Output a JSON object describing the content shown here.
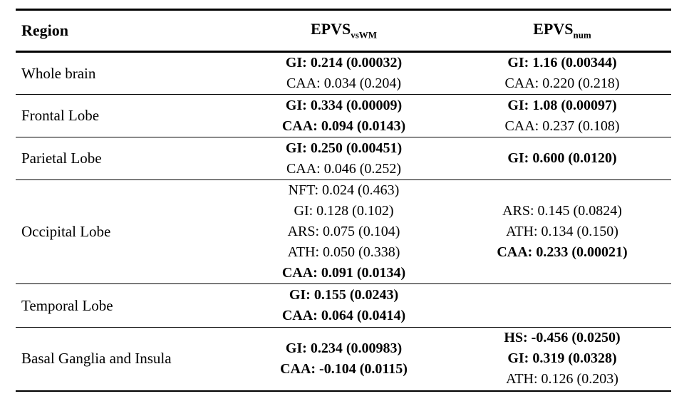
{
  "table": {
    "columns": [
      {
        "label": "Region",
        "subscript": ""
      },
      {
        "label": "EPVS",
        "subscript": "vsWM"
      },
      {
        "label": "EPVS",
        "subscript": "num"
      }
    ],
    "rows": [
      {
        "region": "Whole brain",
        "vswm": [
          {
            "text": "GI: 0.214 (0.00032)",
            "weight": "bold"
          },
          {
            "text": "CAA: 0.034 (0.204)",
            "weight": "normal"
          }
        ],
        "num": [
          {
            "text": "GI: 1.16 (0.00344)",
            "weight": "bold"
          },
          {
            "text": "CAA: 0.220 (0.218)",
            "weight": "normal"
          }
        ]
      },
      {
        "region": "Frontal Lobe",
        "vswm": [
          {
            "text": "GI: 0.334 (0.00009)",
            "weight": "bold"
          },
          {
            "text": "CAA: 0.094 (0.0143)",
            "weight": "bold"
          }
        ],
        "num": [
          {
            "text": "GI: 1.08 (0.00097)",
            "weight": "bold"
          },
          {
            "text": "CAA: 0.237 (0.108)",
            "weight": "normal"
          }
        ]
      },
      {
        "region": "Parietal Lobe",
        "vswm": [
          {
            "text": "GI: 0.250 (0.00451)",
            "weight": "bold"
          },
          {
            "text": "CAA: 0.046 (0.252)",
            "weight": "normal"
          }
        ],
        "num": [
          {
            "text": "GI: 0.600 (0.0120)",
            "weight": "bold"
          }
        ]
      },
      {
        "region": "Occipital Lobe",
        "vswm": [
          {
            "text": "NFT: 0.024 (0.463)",
            "weight": "normal"
          },
          {
            "text": "GI: 0.128 (0.102)",
            "weight": "normal"
          },
          {
            "text": "ARS: 0.075 (0.104)",
            "weight": "normal"
          },
          {
            "text": "ATH: 0.050 (0.338)",
            "weight": "normal"
          },
          {
            "text": "CAA: 0.091 (0.0134)",
            "weight": "bold"
          }
        ],
        "num": [
          {
            "text": "ARS: 0.145 (0.0824)",
            "weight": "normal"
          },
          {
            "text": "ATH: 0.134 (0.150)",
            "weight": "normal"
          },
          {
            "text": "CAA: 0.233 (0.00021)",
            "weight": "bold"
          }
        ]
      },
      {
        "region": "Temporal Lobe",
        "vswm": [
          {
            "text": "GI: 0.155 (0.0243)",
            "weight": "bold"
          },
          {
            "text": "CAA: 0.064 (0.0414)",
            "weight": "bold"
          }
        ],
        "num": []
      },
      {
        "region": "Basal Ganglia and Insula",
        "vswm": [
          {
            "text": "GI: 0.234 (0.00983)",
            "weight": "bold"
          },
          {
            "text": "CAA: -0.104 (0.0115)",
            "weight": "bold"
          }
        ],
        "num": [
          {
            "text": "HS: -0.456 (0.0250)",
            "weight": "bold"
          },
          {
            "text": "GI: 0.319 (0.0328)",
            "weight": "bold"
          },
          {
            "text": "ATH: 0.126 (0.203)",
            "weight": "normal"
          }
        ]
      }
    ]
  }
}
